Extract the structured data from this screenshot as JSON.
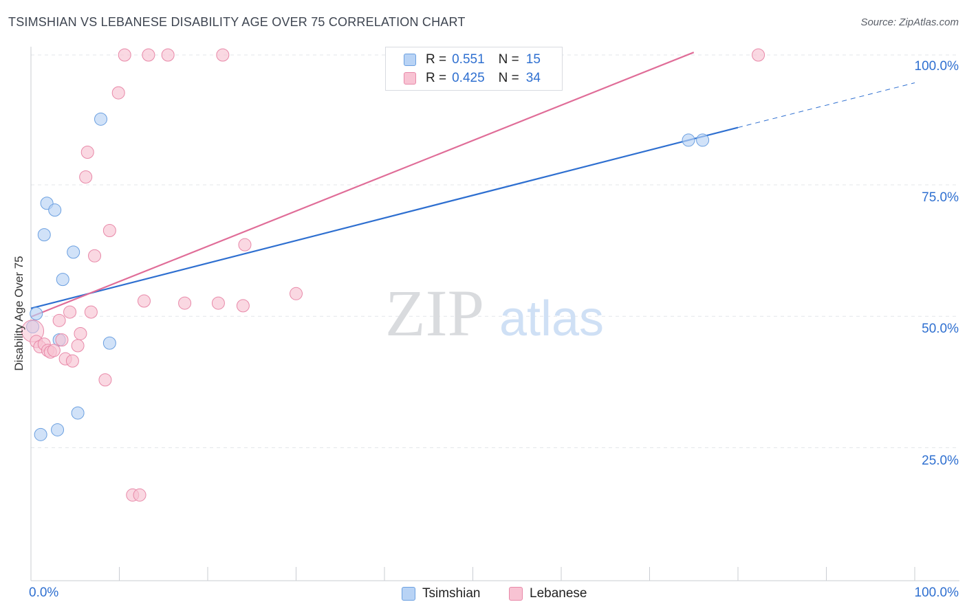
{
  "header": {
    "title": "TSIMSHIAN VS LEBANESE DISABILITY AGE OVER 75 CORRELATION CHART",
    "source": "Source: ZipAtlas.com"
  },
  "watermark": {
    "zip": "ZIP",
    "atlas": "atlas"
  },
  "legend": {
    "series": [
      {
        "name": "Tsimshian",
        "r_label": "R =",
        "r_value": "0.551",
        "n_label": "N =",
        "n_value": "15",
        "fill": "#b8d3f5",
        "stroke": "#6a9fe0"
      },
      {
        "name": "Lebanese",
        "r_label": "R =",
        "r_value": "0.425",
        "n_label": "N =",
        "n_value": "34",
        "fill": "#f8c3d3",
        "stroke": "#e888a8"
      }
    ]
  },
  "chart_data": {
    "type": "scatter",
    "title": "TSIMSHIAN VS LEBANESE DISABILITY AGE OVER 75 CORRELATION CHART",
    "xlabel": "",
    "ylabel": "Disability Age Over 75",
    "xlim": [
      0,
      100
    ],
    "ylim": [
      0,
      102
    ],
    "x_tick_labels": [
      "0.0%",
      "100.0%"
    ],
    "y_tick_labels": [
      {
        "value": 25,
        "label": "25.0%"
      },
      {
        "value": 50,
        "label": "50.0%"
      },
      {
        "value": 75,
        "label": "75.0%"
      },
      {
        "value": 100,
        "label": "100.0%"
      }
    ],
    "grid": true,
    "legend_position": "top-center",
    "series": [
      {
        "name": "Tsimshian",
        "color": "#2e6fd0",
        "fill": "#b8d3f5",
        "stroke": "#6a9fe0",
        "points": [
          [
            0.2,
            48.3
          ],
          [
            0.6,
            50.8
          ],
          [
            1.1,
            27.8
          ],
          [
            1.5,
            65.8
          ],
          [
            1.8,
            71.8
          ],
          [
            2.7,
            70.5
          ],
          [
            3.0,
            28.7
          ],
          [
            3.2,
            45.8
          ],
          [
            3.6,
            57.3
          ],
          [
            4.8,
            62.5
          ],
          [
            5.3,
            31.9
          ],
          [
            7.9,
            87.8
          ],
          [
            8.9,
            45.2
          ],
          [
            74.4,
            83.8
          ],
          [
            76.0,
            83.8
          ]
        ],
        "trend": {
          "x0": 0,
          "y0": 51.8,
          "x1": 80,
          "y1": 86.2,
          "dash_to_x": 100,
          "dash_to_y": 94.7
        }
      },
      {
        "name": "Lebanese",
        "color": "#e06d98",
        "fill": "#f8c3d3",
        "stroke": "#e888a8",
        "points": [
          [
            0.2,
            47.5
          ],
          [
            0.6,
            45.5
          ],
          [
            1.0,
            44.5
          ],
          [
            1.5,
            45.0
          ],
          [
            1.9,
            43.8
          ],
          [
            2.2,
            43.5
          ],
          [
            2.6,
            43.8
          ],
          [
            3.2,
            49.5
          ],
          [
            3.5,
            45.8
          ],
          [
            3.9,
            42.2
          ],
          [
            4.4,
            51.1
          ],
          [
            4.7,
            41.8
          ],
          [
            5.3,
            44.7
          ],
          [
            5.6,
            47.0
          ],
          [
            6.2,
            76.8
          ],
          [
            6.4,
            81.5
          ],
          [
            6.8,
            51.1
          ],
          [
            7.2,
            61.8
          ],
          [
            8.4,
            38.2
          ],
          [
            8.9,
            66.6
          ],
          [
            9.9,
            92.8
          ],
          [
            10.6,
            100
          ],
          [
            11.5,
            16.3
          ],
          [
            12.3,
            16.3
          ],
          [
            12.8,
            53.2
          ],
          [
            13.3,
            100
          ],
          [
            15.5,
            100
          ],
          [
            17.4,
            52.8
          ],
          [
            21.2,
            52.8
          ],
          [
            21.7,
            100
          ],
          [
            24.0,
            52.3
          ],
          [
            24.2,
            63.9
          ],
          [
            30.0,
            54.6
          ],
          [
            82.3,
            100
          ]
        ],
        "trend": {
          "x0": 0,
          "y0": 50.2,
          "x1": 75,
          "y1": 100.5
        }
      }
    ]
  }
}
